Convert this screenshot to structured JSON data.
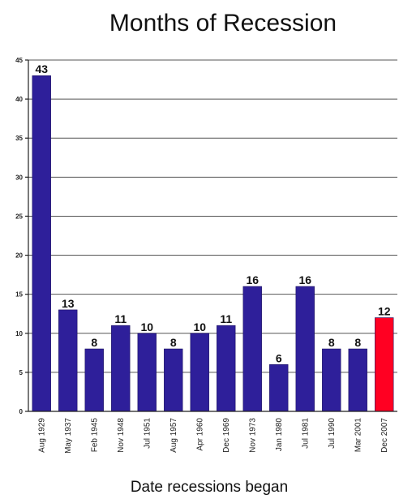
{
  "chart_data": {
    "type": "bar",
    "title": "Months of Recession",
    "xlabel": "Date recessions began",
    "ylabel": "",
    "ylim": [
      0,
      45
    ],
    "yticks": [
      0,
      5,
      10,
      15,
      20,
      25,
      30,
      35,
      40,
      45
    ],
    "grid": true,
    "categories": [
      "Aug 1929",
      "May 1937",
      "Feb 1945",
      "Nov 1948",
      "Jul 1951",
      "Aug 1957",
      "Apr 1960",
      "Dec 1969",
      "Nov 1973",
      "Jan 1980",
      "Jul 1981",
      "Jul 1990",
      "Mar 2001",
      "Dec 2007"
    ],
    "values": [
      43,
      13,
      8,
      11,
      10,
      8,
      10,
      11,
      16,
      6,
      16,
      8,
      8,
      12
    ],
    "colors": [
      "#2e1f9a",
      "#2e1f9a",
      "#2e1f9a",
      "#2e1f9a",
      "#2e1f9a",
      "#2e1f9a",
      "#2e1f9a",
      "#2e1f9a",
      "#2e1f9a",
      "#2e1f9a",
      "#2e1f9a",
      "#2e1f9a",
      "#2e1f9a",
      "#ff0022"
    ]
  }
}
